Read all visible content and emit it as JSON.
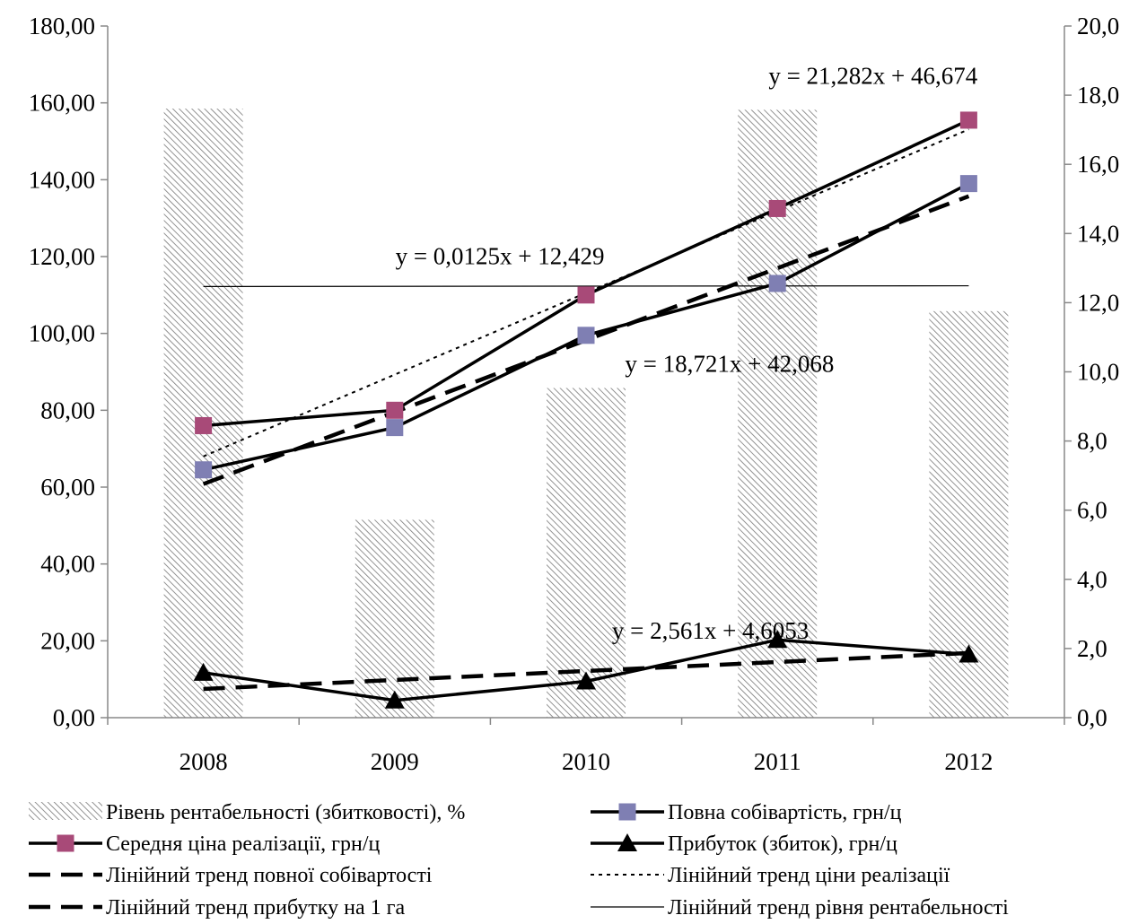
{
  "chart_data": {
    "type": "bar+line",
    "categories": [
      "2008",
      "2009",
      "2010",
      "2011",
      "2012"
    ],
    "y_left": {
      "ylim": [
        0,
        180
      ],
      "ticks": [
        "0,00",
        "20,00",
        "40,00",
        "60,00",
        "80,00",
        "100,00",
        "120,00",
        "140,00",
        "160,00",
        "180,00"
      ]
    },
    "y_right": {
      "ylim": [
        0,
        20
      ],
      "ticks": [
        "0,0",
        "2,0",
        "4,0",
        "6,0",
        "8,0",
        "10,0",
        "12,0",
        "14,0",
        "16,0",
        "18,0",
        "20,0"
      ]
    },
    "series": [
      {
        "name": "Рівень рентабельності (збитковості), %",
        "kind": "bar",
        "axis": "left",
        "values": [
          158.5,
          51.5,
          85.8,
          158.2,
          105.8
        ],
        "pattern": "hatch"
      },
      {
        "name": "Повна собівартість, грн/ц",
        "kind": "line",
        "axis": "left",
        "values": [
          64.5,
          75.5,
          99.5,
          113.0,
          139.0
        ],
        "marker": "square",
        "marker_color": "#7f7fb3"
      },
      {
        "name": "Середня ціна реалізації, грн/ц",
        "kind": "line",
        "axis": "left",
        "values": [
          76.0,
          80.0,
          110.0,
          132.5,
          155.5
        ],
        "marker": "square",
        "marker_color": "#a84a78"
      },
      {
        "name": "Прибуток (збиток), грн/ц",
        "kind": "line",
        "axis": "right",
        "values": [
          1.3,
          0.5,
          1.05,
          2.25,
          1.83
        ],
        "marker": "triangle",
        "marker_color": "#000000"
      },
      {
        "name": "Лінійний тренд повної собівартості",
        "kind": "trend",
        "style": "dashed",
        "axis": "left",
        "from": 60.8,
        "to": 135.7
      },
      {
        "name": "Лінійний тренд ціни реалізації",
        "kind": "trend",
        "style": "dotted",
        "axis": "left",
        "from": 68.0,
        "to": 153.1
      },
      {
        "name": "Лінійний тренд прибутку на 1 га",
        "kind": "trend",
        "style": "dashed",
        "axis": "right",
        "from": 0.83,
        "to": 1.87
      },
      {
        "name": "Лінійний тренд рівня рентабельності",
        "kind": "trend",
        "style": "thin",
        "axis": "left",
        "from": 112.2,
        "to": 112.4
      }
    ],
    "equations": [
      {
        "text": "y = 21,282x + 46,674",
        "x": "2011.5",
        "y": 165
      },
      {
        "text": "y = 0,0125x + 12,429",
        "x": "2009.55",
        "y": 118
      },
      {
        "text": "y = 18,721x + 42,068",
        "x": "2010.75",
        "y": 90
      },
      {
        "text": "y = 2,561x + 4,6053",
        "x": "2010.65",
        "y": 20.5
      }
    ],
    "legend": {
      "position": "bottom",
      "items": [
        {
          "label": "Рівень рентабельності (збитковості), %",
          "symbol": "hatch"
        },
        {
          "label": "Повна собівартість, грн/ц",
          "symbol": "line-square-blue"
        },
        {
          "label": "Середня ціна реалізації, грн/ц",
          "symbol": "line-square-red"
        },
        {
          "label": "Прибуток (збиток), грн/ц",
          "symbol": "line-triangle"
        },
        {
          "label": "Лінійний тренд повної собівартості",
          "symbol": "dashed"
        },
        {
          "label": "Лінійний тренд ціни реалізації",
          "symbol": "dotted"
        },
        {
          "label": "Лінійний тренд прибутку на 1 га",
          "symbol": "dashed"
        },
        {
          "label": "Лінійний тренд рівня рентабельності",
          "symbol": "thin"
        }
      ]
    },
    "grid": false
  }
}
